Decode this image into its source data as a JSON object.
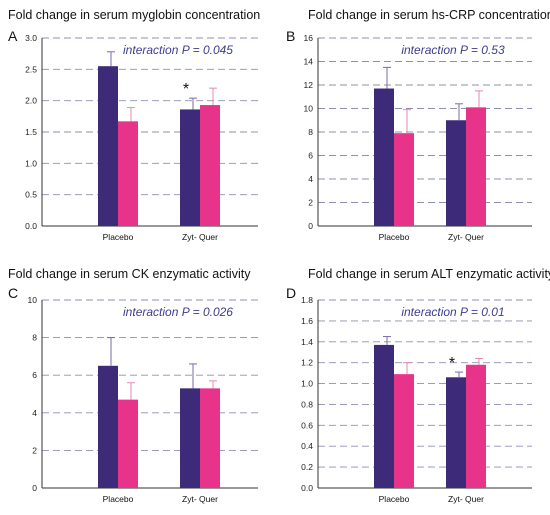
{
  "colors": {
    "series1": "#3d2a78",
    "series2": "#e8338a",
    "annotation": "#3d3d90",
    "grid": "#8f8fb0"
  },
  "chart_data": [
    {
      "type": "bar",
      "panel": "A",
      "title": "Fold change in serum myglobin concentration",
      "annotation": "interaction P = 0.045",
      "categories": [
        "Placebo",
        "Zyt- Quer"
      ],
      "series": [
        {
          "values": [
            2.55,
            1.86
          ],
          "errors": [
            0.23,
            0.18
          ]
        },
        {
          "values": [
            1.67,
            1.93
          ],
          "errors": [
            0.22,
            0.27
          ]
        }
      ],
      "ylim": [
        0,
        3.0
      ],
      "yticks": [
        "0.0",
        "0.5",
        "1.0",
        "1.5",
        "2.0",
        "2.5",
        "3.0"
      ],
      "significance": [
        {
          "category": 1,
          "series": 0,
          "mark": "*"
        }
      ]
    },
    {
      "type": "bar",
      "panel": "B",
      "title": "Fold change in serum hs-CRP concentration",
      "annotation": "interaction P = 0.53",
      "categories": [
        "Placebo",
        "Zyt- Quer"
      ],
      "series": [
        {
          "values": [
            11.7,
            9.0
          ],
          "errors": [
            1.8,
            1.4
          ]
        },
        {
          "values": [
            7.9,
            10.1
          ],
          "errors": [
            2.0,
            1.4
          ]
        }
      ],
      "ylim": [
        0,
        16
      ],
      "yticks": [
        "0",
        "2",
        "4",
        "6",
        "8",
        "10",
        "12",
        "14",
        "16"
      ],
      "significance": []
    },
    {
      "type": "bar",
      "panel": "C",
      "title": "Fold change in serum CK enzymatic activity",
      "annotation": "interaction P = 0.026",
      "categories": [
        "Placebo",
        "Zyt- Quer"
      ],
      "series": [
        {
          "values": [
            6.5,
            5.3
          ],
          "errors": [
            1.5,
            1.3
          ]
        },
        {
          "values": [
            4.7,
            5.3
          ],
          "errors": [
            0.9,
            0.4
          ]
        }
      ],
      "ylim": [
        0,
        10
      ],
      "yticks": [
        "0",
        "2",
        "4",
        "6",
        "8",
        "10"
      ],
      "significance": []
    },
    {
      "type": "bar",
      "panel": "D",
      "title": "Fold change in serum ALT enzymatic activity",
      "annotation": "interaction P = 0.01",
      "categories": [
        "Placebo",
        "Zyt- Quer"
      ],
      "series": [
        {
          "values": [
            1.37,
            1.06
          ],
          "errors": [
            0.08,
            0.05
          ]
        },
        {
          "values": [
            1.09,
            1.18
          ],
          "errors": [
            0.11,
            0.06
          ]
        }
      ],
      "ylim": [
        0,
        1.8
      ],
      "yticks": [
        "0.0",
        "0.2",
        "0.4",
        "0.6",
        "0.8",
        "1.0",
        "1.2",
        "1.4",
        "1.6",
        "1.8"
      ],
      "significance": [
        {
          "category": 1,
          "series": 0,
          "mark": "*"
        }
      ]
    }
  ]
}
